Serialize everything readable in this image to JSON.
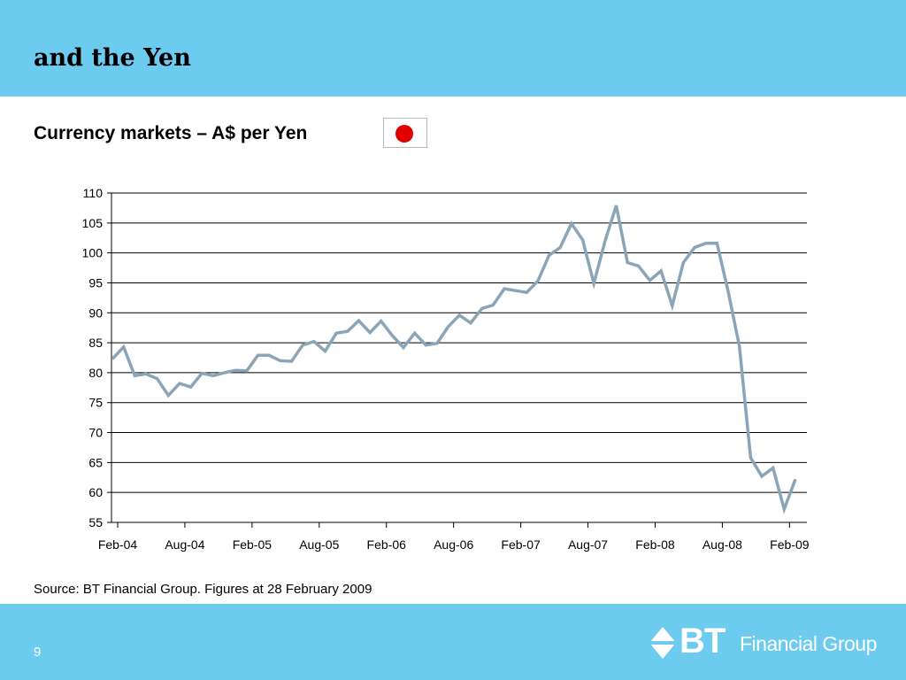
{
  "slide": {
    "title": "and the Yen",
    "subtitle": "Currency markets – A$ per Yen",
    "source": "Source: BT Financial Group. Figures at 28 February 2009",
    "page_number": "9",
    "logo_mark": "BT",
    "logo_text": "Financial Group",
    "flag_icon": "japan-flag-icon",
    "colors": {
      "header": "#6ecbf0",
      "line": "#8aa5b8",
      "flag_red": "#e00000"
    }
  },
  "chart_data": {
    "type": "line",
    "title": "",
    "xlabel": "",
    "ylabel": "",
    "ylim": [
      55,
      110
    ],
    "y_ticks": [
      "55",
      "60",
      "65",
      "70",
      "75",
      "80",
      "85",
      "90",
      "95",
      "100",
      "105",
      "110"
    ],
    "x_ticks": [
      "Feb-04",
      "Aug-04",
      "Feb-05",
      "Aug-05",
      "Feb-06",
      "Aug-06",
      "Feb-07",
      "Aug-07",
      "Feb-08",
      "Aug-08",
      "Feb-09"
    ],
    "grid": true,
    "series": [
      {
        "name": "A$ per Yen",
        "values": [
          82.3,
          84.3,
          79.5,
          79.8,
          79.0,
          76.2,
          78.2,
          77.6,
          79.9,
          79.5,
          80.0,
          80.4,
          80.3,
          82.9,
          82.9,
          82.0,
          81.9,
          84.6,
          85.2,
          83.6,
          86.6,
          86.9,
          88.7,
          86.7,
          88.6,
          86.2,
          84.2,
          86.6,
          84.6,
          84.9,
          87.7,
          89.6,
          88.3,
          90.7,
          91.3,
          94.0,
          93.7,
          93.4,
          95.3,
          99.6,
          100.9,
          104.9,
          102.2,
          94.9,
          102.0,
          107.9,
          98.4,
          97.8,
          95.4,
          97.0,
          91.2,
          98.4,
          100.9,
          101.6,
          101.6,
          93.5,
          84.4,
          65.8,
          62.7,
          64.1,
          57.2,
          62.2
        ]
      }
    ]
  }
}
